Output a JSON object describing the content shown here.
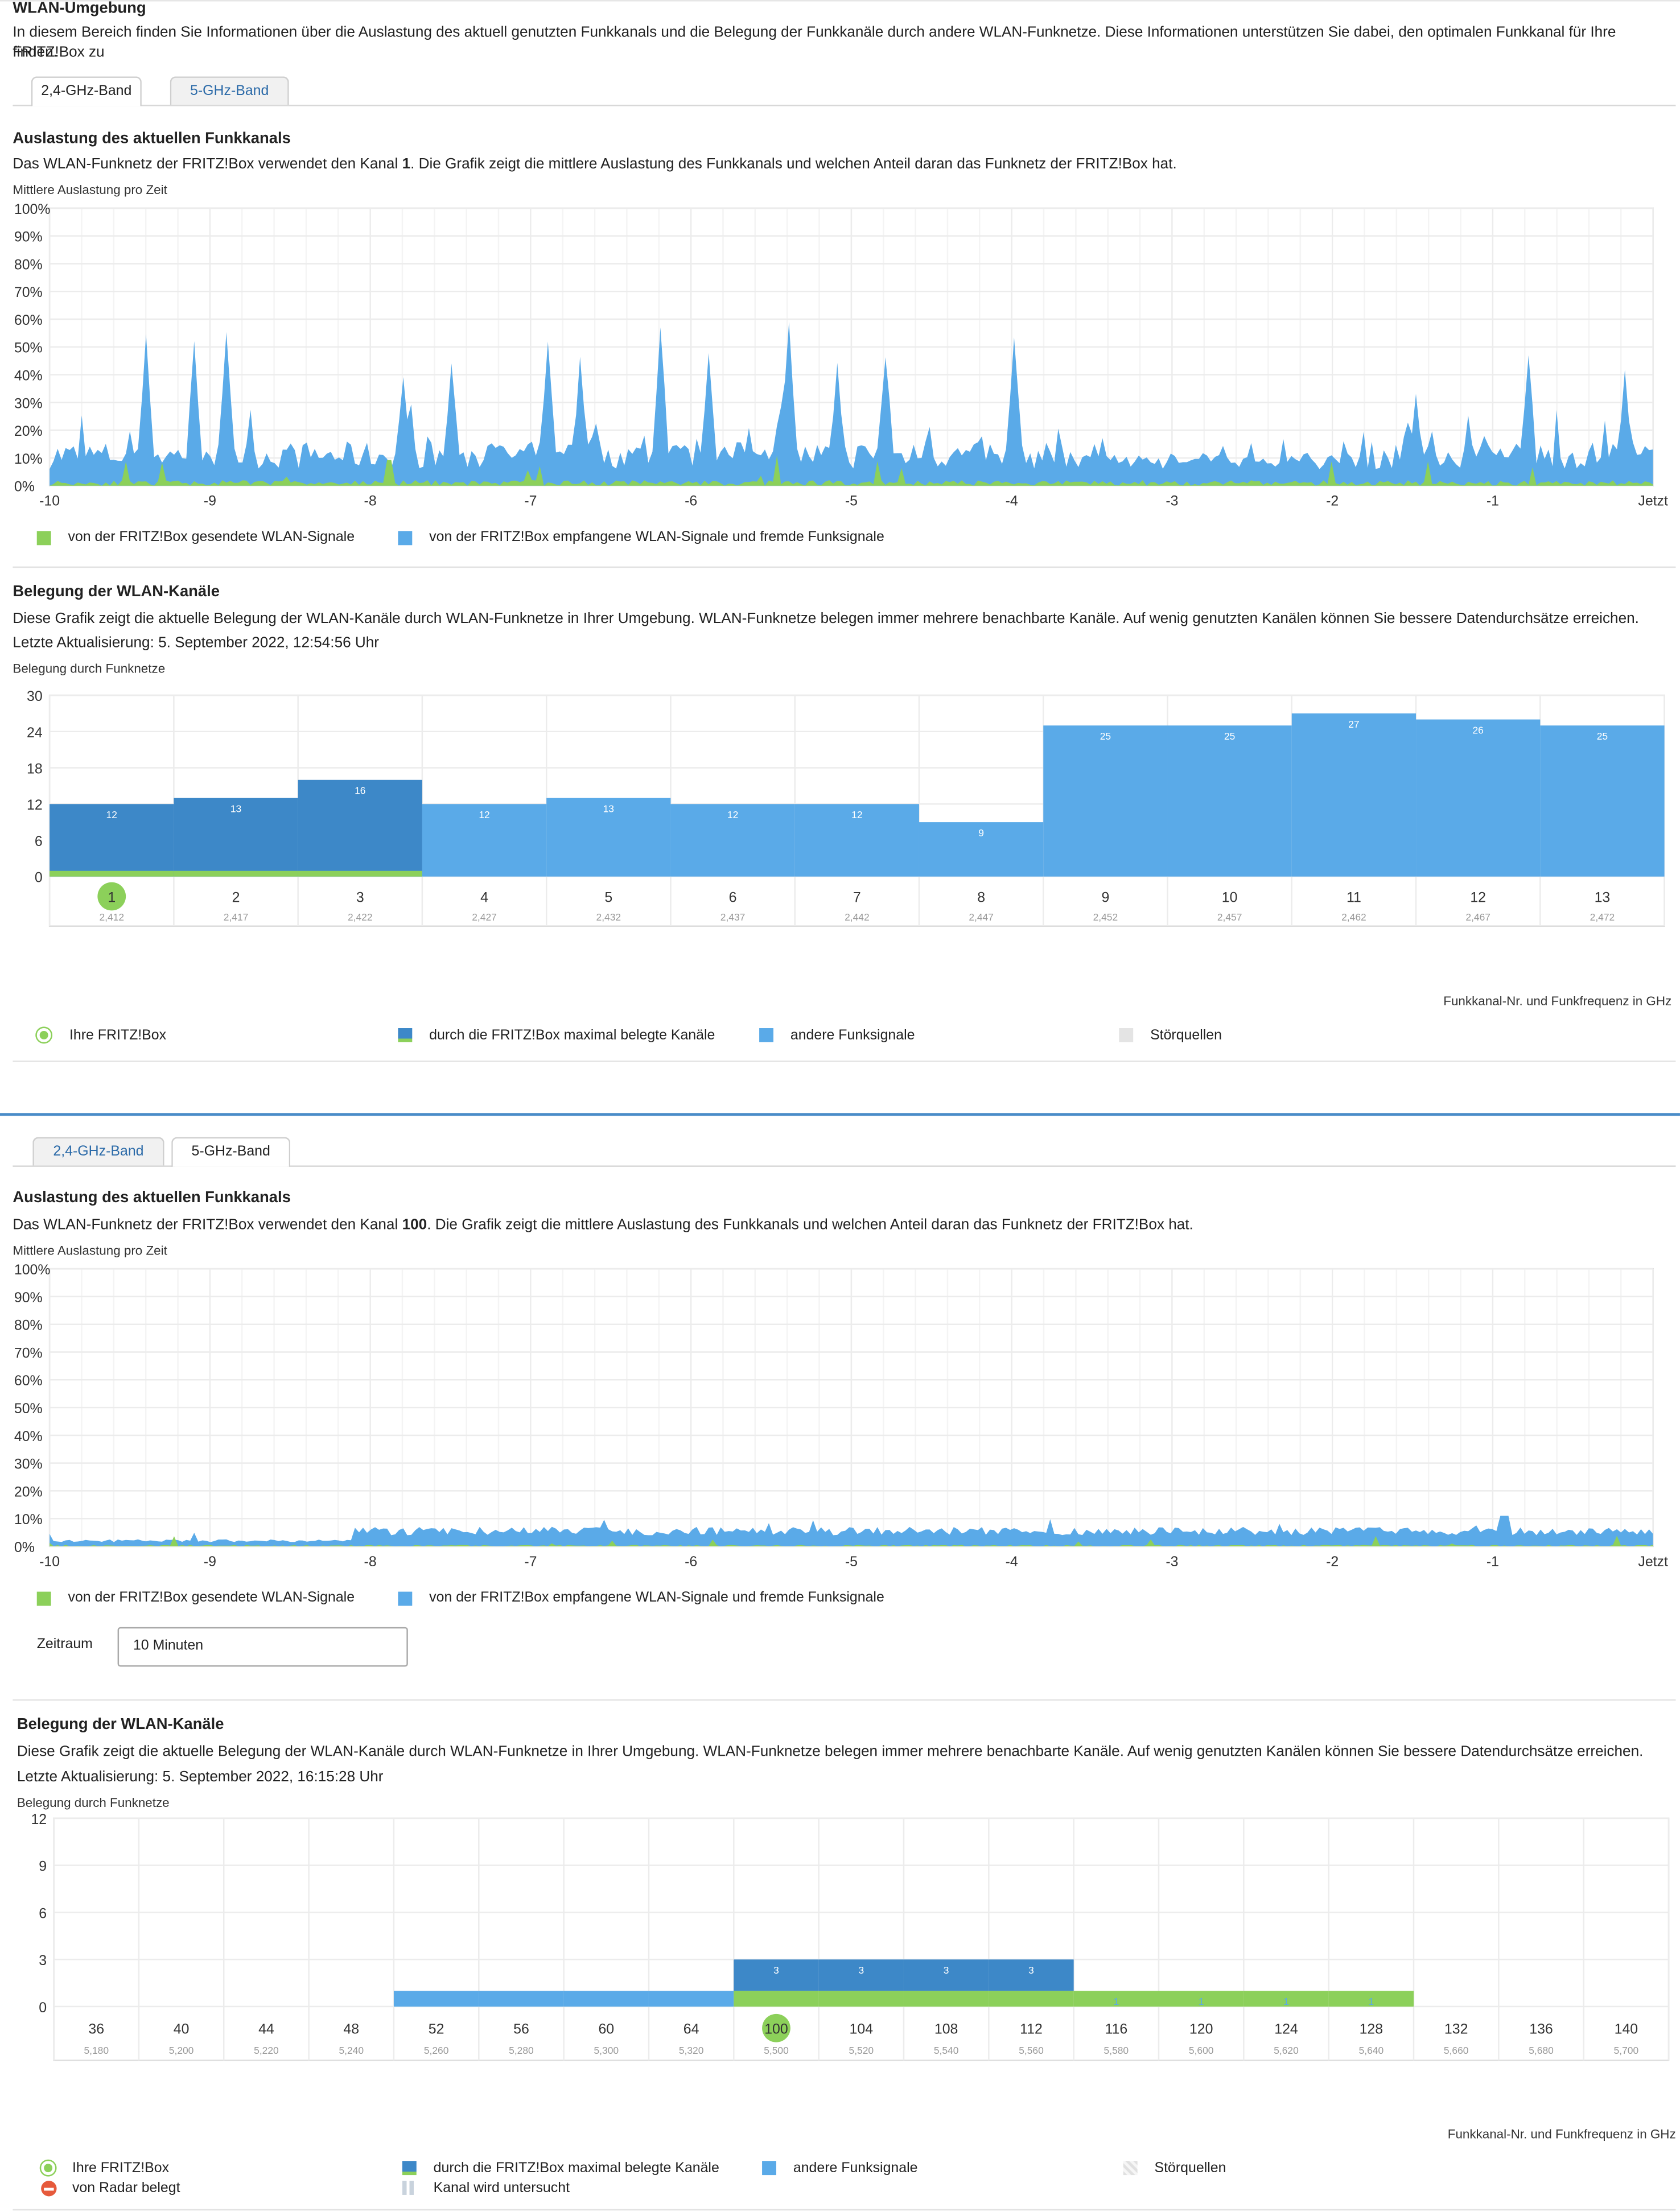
{
  "section1": {
    "title": "WLAN-Umgebung",
    "intro": "In diesem Bereich finden Sie Informationen über die Auslastung des aktuell genutzten Funkkanals und die Belegung der Funkkanäle durch andere WLAN-Funknetze. Diese Informationen unterstützen Sie dabei, den optimalen Funkkanal für Ihre FRITZ!Box zu",
    "intro2": "finden.",
    "tabs": [
      "2,4-GHz-Band",
      "5-GHz-Band"
    ],
    "util_title": "Auslastung des aktuellen Funkkanals",
    "util_text_a": "Das WLAN-Funknetz der FRITZ!Box verwendet den Kanal ",
    "util_channel": "1",
    "util_text_b": ". Die Grafik zeigt die mittlere Auslastung des Funkkanals und welchen Anteil daran das Funknetz der FRITZ!Box hat.",
    "util_chart_label": "Mittlere Auslastung pro Zeit",
    "legend_sent": "von der FRITZ!Box gesendete WLAN-Signale",
    "legend_recv": "von der FRITZ!Box empfangene WLAN-Signale und fremde Funksignale",
    "chan_title": "Belegung der WLAN-Kanäle",
    "chan_text": "Diese Grafik zeigt die aktuelle Belegung der WLAN-Kanäle durch WLAN-Funknetze in Ihrer Umgebung. WLAN-Funknetze belegen immer mehrere benachbarte Kanäle. Auf wenig genutzten Kanälen können Sie bessere Datendurchsätze erreichen.",
    "chan_updated": "Letzte Aktualisierung: 5. September 2022, 12:54:56 Uhr",
    "chan_chart_label": "Belegung durch Funknetze",
    "axis_caption": "Funkkanal-Nr. und Funkfrequenz in GHz",
    "legend_own": "Ihre FRITZ!Box",
    "legend_max": "durch die FRITZ!Box maximal belegte Kanäle",
    "legend_other": "andere Funksignale",
    "legend_noise": "Störquellen"
  },
  "section2": {
    "tabs": [
      "2,4-GHz-Band",
      "5-GHz-Band"
    ],
    "util_title": "Auslastung des aktuellen Funkkanals",
    "util_text_a": "Das WLAN-Funknetz der FRITZ!Box verwendet den Kanal ",
    "util_channel": "100",
    "util_text_b": ". Die Grafik zeigt die mittlere Auslastung des Funkkanals und welchen Anteil daran das Funknetz der FRITZ!Box hat.",
    "util_chart_label": "Mittlere Auslastung pro Zeit",
    "legend_sent": "von der FRITZ!Box gesendete WLAN-Signale",
    "legend_recv": "von der FRITZ!Box empfangene WLAN-Signale und fremde Funksignale",
    "period_label": "Zeitraum",
    "period_value": "10 Minuten",
    "chan_title": "Belegung der WLAN-Kanäle",
    "chan_text": "Diese Grafik zeigt die aktuelle Belegung der WLAN-Kanäle durch WLAN-Funknetze in Ihrer Umgebung. WLAN-Funknetze belegen immer mehrere benachbarte Kanäle. Auf wenig genutzten Kanälen können Sie bessere Datendurchsätze erreichen.",
    "chan_updated": "Letzte Aktualisierung: 5. September 2022, 16:15:28 Uhr",
    "chan_chart_label": "Belegung durch Funknetze",
    "axis_caption": "Funkkanal-Nr. und Funkfrequenz in GHz",
    "legend_own": "Ihre FRITZ!Box",
    "legend_radar": "von Radar belegt",
    "legend_max": "durch die FRITZ!Box maximal belegte Kanäle",
    "legend_scan": "Kanal wird untersucht",
    "legend_other": "andere Funksignale",
    "legend_noise": "Störquellen"
  },
  "colors": {
    "sent": "#8cd05a",
    "recv": "#5aaae8",
    "max": "#3d88c8",
    "accent": "#2b6aa8",
    "own": "#8cd05a"
  },
  "chart_data": [
    {
      "type": "area",
      "title": "Mittlere Auslastung pro Zeit",
      "y_ticks": [
        "100%",
        "90%",
        "80%",
        "70%",
        "60%",
        "50%",
        "40%",
        "30%",
        "20%",
        "10%",
        "0%"
      ],
      "x_ticks": [
        "-10",
        "-9",
        "-8",
        "-7",
        "-6",
        "-5",
        "-4",
        "-3",
        "-2",
        "-1",
        "Jetzt"
      ],
      "ylim": [
        0,
        100
      ],
      "series": [
        {
          "name": "von der FRITZ!Box gesendete WLAN-Signale",
          "profile": "sent24"
        },
        {
          "name": "von der FRITZ!Box empfangene WLAN-Signale und fremde Funksignale",
          "profile": "recv24"
        }
      ]
    },
    {
      "type": "bar",
      "title": "Belegung durch Funknetze",
      "y_ticks": [
        "30",
        "24",
        "18",
        "12",
        "6",
        "0"
      ],
      "ylim": [
        0,
        30
      ],
      "categories": [
        "1",
        "2",
        "3",
        "4",
        "5",
        "6",
        "7",
        "8",
        "9",
        "10",
        "11",
        "12",
        "13"
      ],
      "frequencies": [
        "2,412",
        "2,417",
        "2,422",
        "2,427",
        "2,432",
        "2,437",
        "2,442",
        "2,447",
        "2,452",
        "2,457",
        "2,462",
        "2,467",
        "2,472"
      ],
      "values": [
        12,
        13,
        16,
        12,
        13,
        12,
        12,
        9,
        25,
        25,
        27,
        26,
        25
      ],
      "own_channel": "1",
      "max_channels": [
        "1",
        "2",
        "3"
      ],
      "xlabel": "Funkkanal-Nr. und Funkfrequenz in GHz"
    },
    {
      "type": "area",
      "title": "Mittlere Auslastung pro Zeit",
      "y_ticks": [
        "100%",
        "90%",
        "80%",
        "70%",
        "60%",
        "50%",
        "40%",
        "30%",
        "20%",
        "10%",
        "0%"
      ],
      "x_ticks": [
        "-10",
        "-9",
        "-8",
        "-7",
        "-6",
        "-5",
        "-4",
        "-3",
        "-2",
        "-1",
        "Jetzt"
      ],
      "ylim": [
        0,
        100
      ],
      "series": [
        {
          "name": "von der FRITZ!Box gesendete WLAN-Signale",
          "profile": "sent5"
        },
        {
          "name": "von der FRITZ!Box empfangene WLAN-Signale und fremde Funksignale",
          "profile": "recv5"
        }
      ]
    },
    {
      "type": "bar",
      "title": "Belegung durch Funknetze",
      "y_ticks": [
        "12",
        "9",
        "6",
        "3",
        "0"
      ],
      "ylim": [
        0,
        12
      ],
      "categories": [
        "36",
        "40",
        "44",
        "48",
        "52",
        "56",
        "60",
        "64",
        "100",
        "104",
        "108",
        "112",
        "116",
        "120",
        "124",
        "128",
        "132",
        "136",
        "140"
      ],
      "frequencies": [
        "5,180",
        "5,200",
        "5,220",
        "5,240",
        "5,260",
        "5,280",
        "5,300",
        "5,320",
        "5,500",
        "5,520",
        "5,540",
        "5,560",
        "5,580",
        "5,600",
        "5,620",
        "5,640",
        "5,660",
        "5,680",
        "5,700"
      ],
      "values": [
        0,
        0,
        0,
        0,
        1,
        1,
        1,
        1,
        3,
        3,
        3,
        3,
        1,
        1,
        1,
        1,
        0,
        0,
        0
      ],
      "own_channel": "100",
      "max_channels": [
        "100",
        "104",
        "108",
        "112"
      ],
      "xlabel": "Funkkanal-Nr. und Funkfrequenz in GHz"
    }
  ]
}
